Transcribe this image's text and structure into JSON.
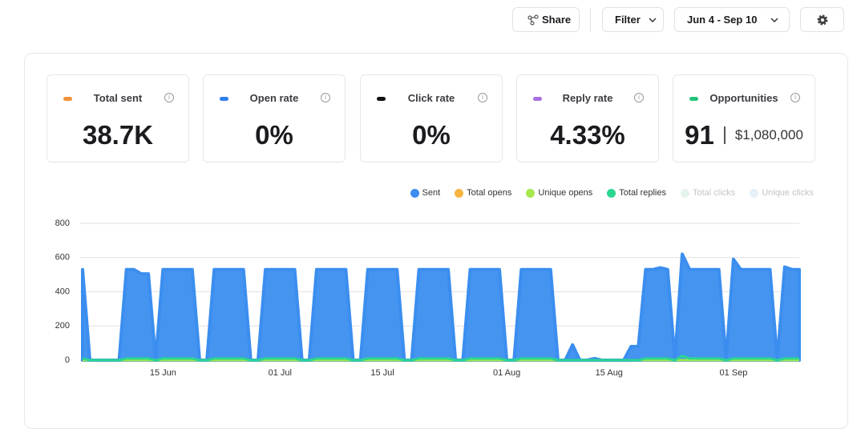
{
  "header": {
    "share": "Share",
    "filter": "Filter",
    "date_range": "Jun 4 - Sep 10"
  },
  "cards": [
    {
      "label": "Total sent",
      "value": "38.7K",
      "color": "#f0913a"
    },
    {
      "label": "Open rate",
      "value": "0%",
      "color": "#2f7df0"
    },
    {
      "label": "Click rate",
      "value": "0%",
      "color": "#111111"
    },
    {
      "label": "Reply rate",
      "value": "4.33%",
      "color": "#a86ee0"
    },
    {
      "label": "Opportunities",
      "value": "91",
      "amount": "$1,080,000",
      "color": "#22c47a"
    }
  ],
  "chart_data": {
    "type": "area",
    "categories": [
      null,
      null,
      null,
      null,
      null,
      null,
      null,
      null,
      null,
      null,
      null,
      "15 Jun",
      null,
      null,
      null,
      null,
      null,
      null,
      null,
      null,
      null,
      null,
      null,
      null,
      null,
      null,
      null,
      "01 Jul",
      null,
      null,
      null,
      null,
      null,
      null,
      null,
      null,
      null,
      null,
      null,
      null,
      null,
      "15 Jul",
      null,
      null,
      null,
      null,
      null,
      null,
      null,
      null,
      null,
      null,
      null,
      null,
      null,
      null,
      null,
      null,
      "01 Aug",
      null,
      null,
      null,
      null,
      null,
      null,
      null,
      null,
      null,
      null,
      null,
      null,
      null,
      "15 Aug",
      null,
      null,
      null,
      null,
      null,
      null,
      null,
      null,
      null,
      null,
      null,
      null,
      null,
      null,
      null,
      null,
      "01 Sep",
      null,
      null,
      null,
      null,
      null,
      null,
      null,
      null,
      null
    ],
    "series": [
      {
        "name": "Sent",
        "color": "#3b8eef",
        "values": [
          530,
          0,
          0,
          0,
          0,
          0,
          530,
          530,
          505,
          505,
          0,
          530,
          530,
          530,
          530,
          530,
          0,
          0,
          530,
          530,
          530,
          530,
          530,
          0,
          0,
          530,
          530,
          530,
          530,
          530,
          0,
          0,
          530,
          530,
          530,
          530,
          530,
          0,
          0,
          530,
          530,
          530,
          530,
          530,
          0,
          0,
          530,
          530,
          530,
          530,
          530,
          0,
          0,
          530,
          530,
          530,
          530,
          530,
          0,
          0,
          530,
          530,
          530,
          530,
          530,
          0,
          0,
          90,
          0,
          0,
          10,
          0,
          0,
          0,
          0,
          80,
          80,
          530,
          530,
          540,
          530,
          0,
          620,
          530,
          530,
          530,
          530,
          530,
          0,
          590,
          530,
          530,
          530,
          530,
          530,
          0,
          545,
          530,
          530
        ]
      },
      {
        "name": "Total opens",
        "color": "#f5b53f",
        "values": [
          0,
          0,
          0,
          0,
          0,
          0,
          0,
          0,
          0,
          0,
          0,
          0,
          0,
          0,
          0,
          0,
          0,
          0,
          0,
          0,
          0,
          0,
          0,
          0,
          0,
          0,
          0,
          0,
          0,
          0,
          0,
          0,
          0,
          0,
          0,
          0,
          0,
          0,
          0,
          0,
          0,
          0,
          0,
          0,
          0,
          0,
          0,
          0,
          0,
          0,
          0,
          0,
          0,
          0,
          0,
          0,
          0,
          0,
          0,
          0,
          0,
          0,
          0,
          0,
          0,
          0,
          0,
          0,
          0,
          0,
          0,
          0,
          0,
          0,
          0,
          0,
          0,
          0,
          0,
          0,
          0,
          0,
          0,
          0,
          0,
          0,
          0,
          0,
          0,
          0,
          0,
          0,
          0,
          0,
          0,
          0,
          0,
          0,
          0
        ]
      },
      {
        "name": "Unique opens",
        "color": "#a6e84d",
        "values": [
          0,
          0,
          0,
          0,
          0,
          0,
          0,
          0,
          0,
          0,
          0,
          0,
          0,
          0,
          0,
          0,
          0,
          0,
          0,
          0,
          0,
          0,
          0,
          0,
          0,
          0,
          0,
          0,
          0,
          0,
          0,
          0,
          0,
          0,
          0,
          0,
          0,
          0,
          0,
          0,
          0,
          0,
          0,
          0,
          0,
          0,
          0,
          0,
          0,
          0,
          0,
          0,
          0,
          0,
          0,
          0,
          0,
          0,
          0,
          0,
          0,
          0,
          0,
          0,
          0,
          0,
          0,
          0,
          0,
          0,
          0,
          0,
          0,
          0,
          0,
          0,
          0,
          0,
          0,
          0,
          0,
          0,
          0,
          0,
          0,
          0,
          0,
          0,
          0,
          0,
          0,
          0,
          0,
          0,
          0,
          0,
          0,
          0,
          0
        ]
      },
      {
        "name": "Total replies",
        "color": "#2bd68f",
        "values": [
          10,
          0,
          0,
          0,
          0,
          0,
          10,
          10,
          10,
          10,
          0,
          10,
          10,
          10,
          10,
          10,
          0,
          0,
          10,
          10,
          10,
          10,
          10,
          0,
          0,
          10,
          10,
          10,
          10,
          10,
          0,
          0,
          10,
          10,
          10,
          10,
          10,
          0,
          0,
          10,
          10,
          10,
          10,
          10,
          0,
          0,
          10,
          10,
          10,
          10,
          10,
          0,
          0,
          10,
          10,
          10,
          10,
          10,
          0,
          0,
          10,
          10,
          10,
          10,
          10,
          0,
          0,
          0,
          0,
          0,
          0,
          0,
          0,
          0,
          0,
          0,
          0,
          10,
          10,
          10,
          10,
          0,
          25,
          10,
          10,
          10,
          10,
          10,
          0,
          10,
          10,
          10,
          10,
          10,
          10,
          0,
          10,
          10,
          10
        ]
      },
      {
        "name": "Total clicks",
        "color": "#e6f5ec",
        "hidden": true
      },
      {
        "name": "Unique clicks",
        "color": "#e6f0f8",
        "hidden": true
      }
    ],
    "ylim": [
      0,
      800
    ],
    "yticks": [
      0,
      200,
      400,
      600,
      800
    ],
    "grid": true
  }
}
